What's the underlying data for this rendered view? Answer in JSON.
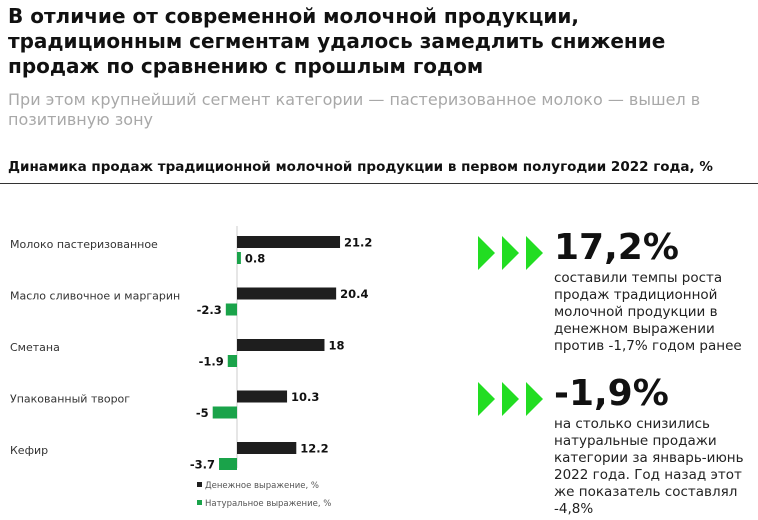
{
  "header": {
    "title": "В отличие от современной молочной продукции, традиционным сегментам удалось замедлить снижение продаж по сравнению с прошлым годом",
    "subtitle": "При этом крупнейший сегмент категории — пастеризованное молоко — вышел в позитивную зону"
  },
  "chart_data": {
    "type": "bar",
    "orientation": "horizontal",
    "title": "Динамика продаж традиционной молочной продукции в первом полугодии 2022 года, %",
    "categories": [
      "Молоко пастеризованное",
      "Масло сливочное и маргарин",
      "Сметана",
      "Упакованный творог",
      "Кефир"
    ],
    "series": [
      {
        "name": "Денежное выражение, %",
        "color": "#1e1e1e",
        "values": [
          21.2,
          20.4,
          18,
          10.3,
          12.2
        ],
        "labels": [
          "21.2",
          "20.4",
          "18",
          "10.3",
          "12.2"
        ]
      },
      {
        "name": "Натуральное выражение, %",
        "color": "#1aa34a",
        "values": [
          0.8,
          -2.3,
          -1.9,
          -5,
          -3.7
        ],
        "labels": [
          "0.8",
          "-2.3",
          "-1.9",
          "-5",
          "-3.7"
        ]
      }
    ],
    "xlim": [
      -5,
      21.2
    ],
    "grid": false,
    "legend": "bottom"
  },
  "stats": [
    {
      "value": "17,2%",
      "text": "составили темпы роста продаж традиционной молочной продукции в денежном выражении против -1,7% годом ранее",
      "icon": "triple-arrow-icon"
    },
    {
      "value": "-1,9%",
      "text": "на столько снизились натуральные продажи категории за январь-июнь 2022 года. Год назад этот же показатель составлял -4,8%",
      "icon": "triple-arrow-icon"
    }
  ],
  "colors": {
    "accent": "#22dd22",
    "dark": "#1e1e1e",
    "green": "#1aa34a"
  }
}
